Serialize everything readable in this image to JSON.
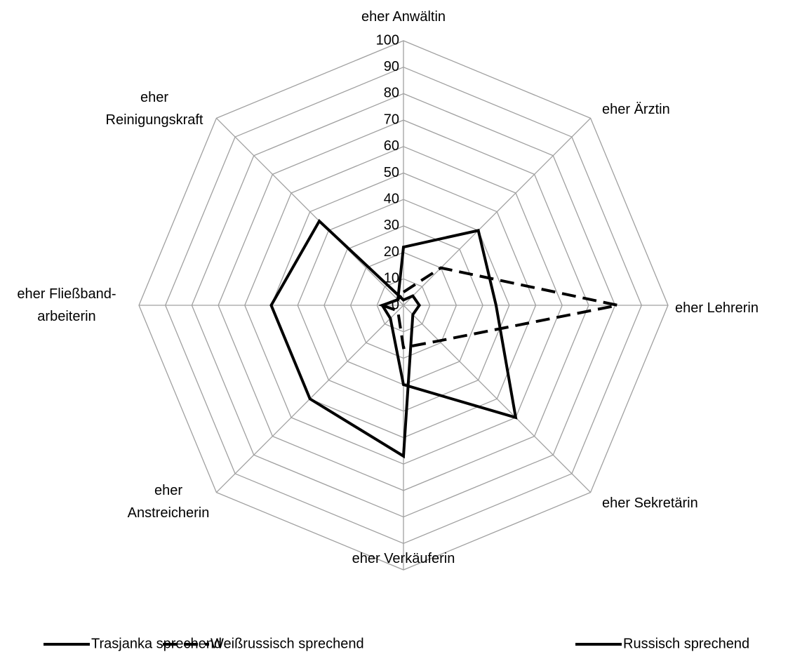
{
  "chart_data": {
    "type": "radar",
    "categories": [
      "eher Anwältin",
      "eher Ärztin",
      "eher Lehrerin",
      "eher Sekretärin",
      "eher Verkäuferin",
      "eher\nAnstreicherin",
      "eher Fließband-\narbeiterin",
      "eher\nReinigungskraft"
    ],
    "series": [
      {
        "name": "Trasjanka sprechend",
        "color": "#000000",
        "linestyle": "solid",
        "values": [
          2,
          5,
          6,
          5,
          57,
          50,
          50,
          45
        ]
      },
      {
        "name": "Weißrussisch sprechend",
        "color": "#000000",
        "linestyle": "dashed",
        "values": [
          5,
          20,
          81,
          19,
          16,
          3,
          8,
          3
        ]
      },
      {
        "name": "Russisch sprechend",
        "color": "#000000",
        "linestyle": "solid",
        "values": [
          22,
          40,
          35,
          60,
          30,
          7,
          8,
          3
        ]
      }
    ],
    "ylim": [
      0,
      100
    ],
    "yticks": [
      0,
      10,
      20,
      30,
      40,
      50,
      60,
      70,
      80,
      90,
      100
    ],
    "grid": true,
    "legend": "bottom"
  }
}
